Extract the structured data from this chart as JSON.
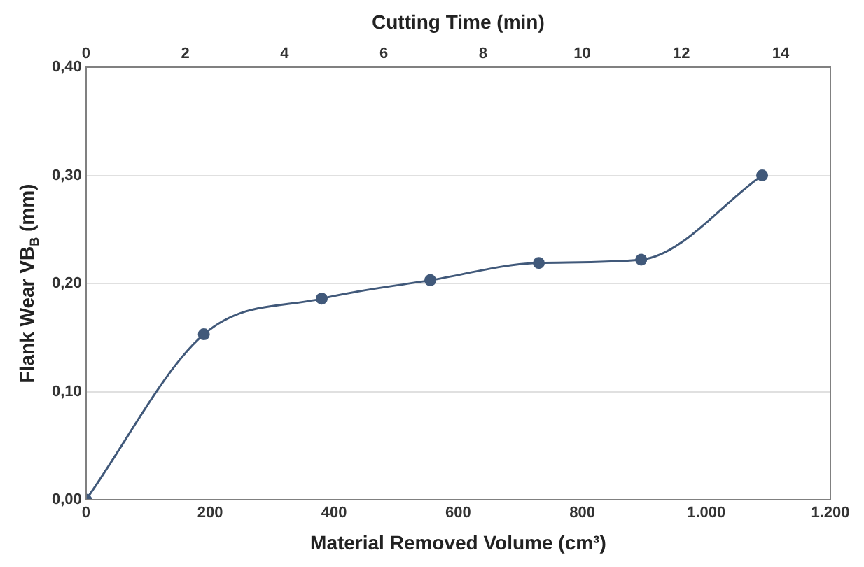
{
  "chart_data": {
    "type": "line",
    "xlabel": "Material Removed Volume (cm³)",
    "x2label": "Cutting Time (min)",
    "ylabel": "Flank Wear VB$_{B}$ (mm)",
    "x": [
      0,
      190,
      380,
      555,
      730,
      895,
      1090
    ],
    "series": [
      {
        "color": "#41597a",
        "values": [
          0,
          0.153,
          0.186,
          0.203,
          0.219,
          0.222,
          0.3
        ]
      }
    ],
    "xlim": [
      0,
      1200
    ],
    "xticks": [
      0,
      200,
      400,
      600,
      800,
      {
        "value": 1000,
        "label": "1.000"
      },
      {
        "value": 1200,
        "label": "1.200"
      }
    ],
    "x2lim": [
      0,
      15
    ],
    "x2ticks": [
      0,
      2,
      4,
      6,
      8,
      10,
      12,
      14
    ],
    "ylim": [
      0,
      0.4
    ],
    "yticks": [
      {
        "value": 0,
        "label": "0,00"
      },
      {
        "value": 0.1,
        "label": "0,10"
      },
      {
        "value": 0.2,
        "label": "0,20"
      },
      {
        "value": 0.3,
        "label": "0,30"
      },
      {
        "value": 0.4,
        "label": "0,40"
      }
    ],
    "grid": "y",
    "legend": false,
    "marker": "circle",
    "line_style": "solid"
  }
}
